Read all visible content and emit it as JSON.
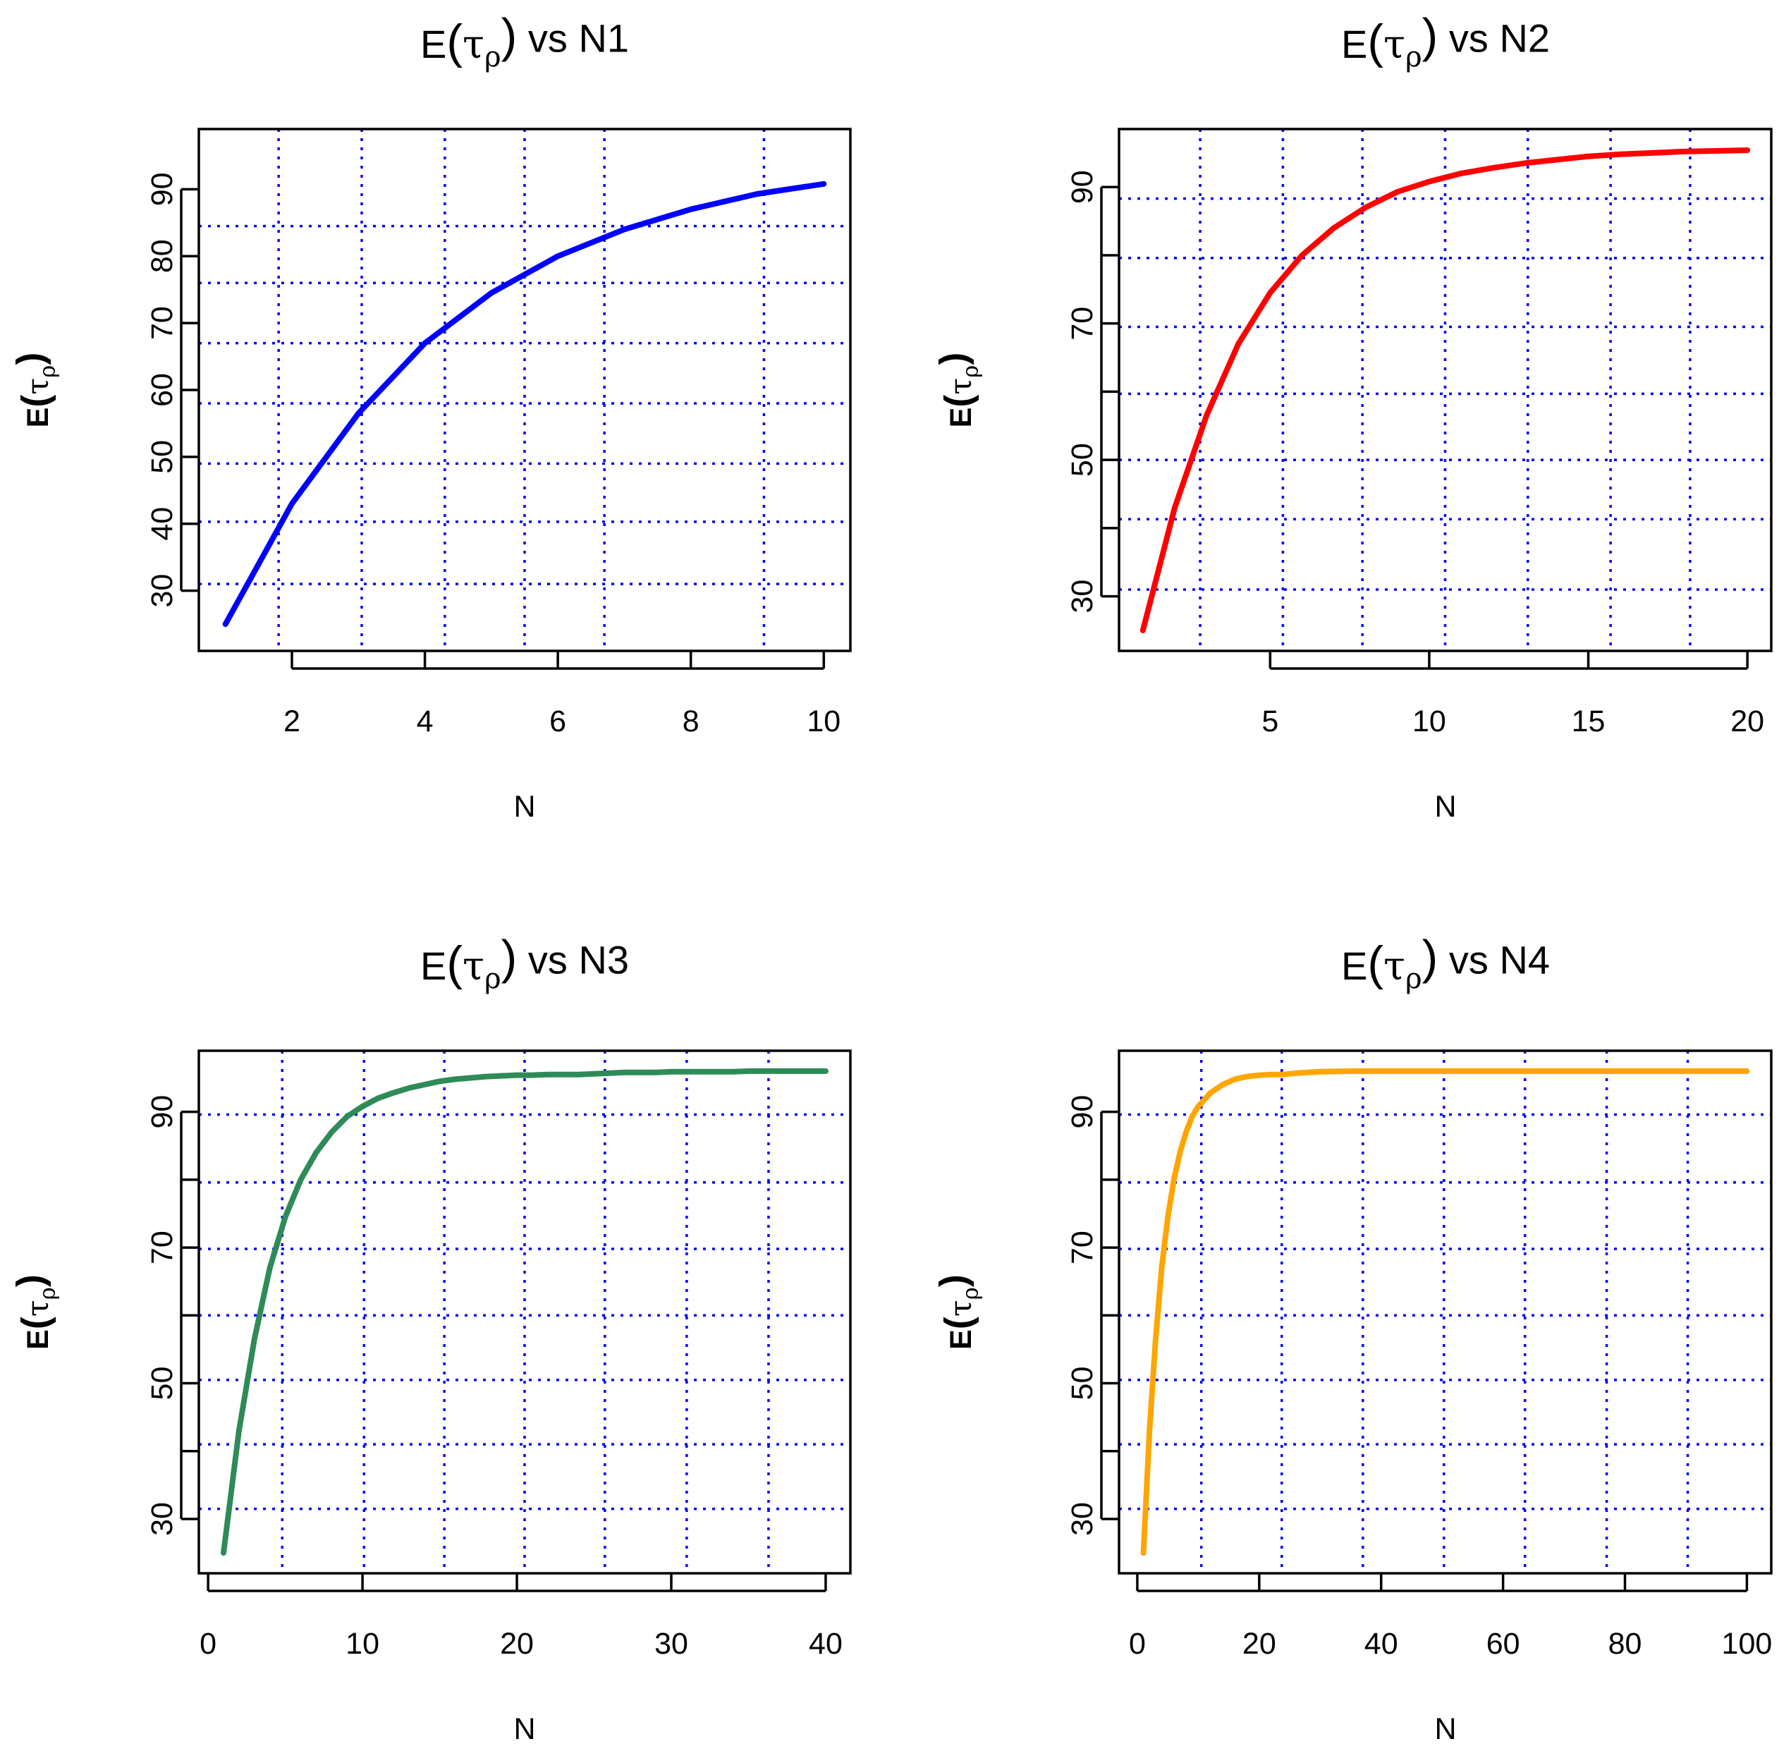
{
  "chart_data": [
    {
      "type": "line",
      "title": "E(τρ) vs N1",
      "title_parts": {
        "prefix": "E",
        "tau": "τ",
        "rho": "ρ",
        "suffix": "vs N1"
      },
      "xlabel": "N",
      "ylabel_parts": {
        "prefix": "E",
        "tau": "τ",
        "rho": "ρ"
      },
      "xlim": [
        0.6,
        10.4
      ],
      "ylim": [
        21,
        99
      ],
      "xticks": [
        2,
        4,
        6,
        8,
        10
      ],
      "yticks": [
        30,
        40,
        50,
        60,
        70,
        80,
        90
      ],
      "grid": true,
      "xgrid": [
        1.8,
        3.05,
        4.3,
        5.5,
        6.7,
        9.1
      ],
      "ygrid": [
        31,
        40.3,
        49,
        58,
        67,
        76,
        84.5
      ],
      "color": "#0000ff",
      "series": [
        {
          "x": [
            1,
            2,
            3,
            4,
            5,
            6,
            7,
            8,
            9,
            10
          ],
          "y": [
            25,
            43,
            56.5,
            67,
            74.5,
            80,
            84,
            87,
            89.3,
            90.8
          ]
        }
      ]
    },
    {
      "type": "line",
      "title": "E(τρ) vs N2",
      "title_parts": {
        "prefix": "E",
        "tau": "τ",
        "rho": "ρ",
        "suffix": "vs N2"
      },
      "xlabel": "N",
      "ylabel_parts": {
        "prefix": "E",
        "tau": "τ",
        "rho": "ρ"
      },
      "xlim": [
        0.25,
        20.75
      ],
      "ylim": [
        22,
        98.5
      ],
      "xticks": [
        5,
        10,
        15,
        20
      ],
      "yticks": [
        30,
        40,
        50,
        60,
        70,
        80,
        90
      ],
      "ytick_labels": [
        "30",
        "",
        "50",
        "",
        "70",
        "",
        "90"
      ],
      "grid": true,
      "xgrid": [
        2.8,
        5.4,
        7.9,
        10.5,
        13.1,
        15.7,
        18.2
      ],
      "ygrid": [
        31,
        41.3,
        50,
        59.7,
        69.5,
        79.6,
        88.3
      ],
      "color": "#ff0000",
      "series": [
        {
          "x": [
            1,
            2,
            3,
            4,
            5,
            6,
            7,
            8,
            9,
            10,
            11,
            12,
            13,
            14,
            15,
            16,
            17,
            18,
            19,
            20
          ],
          "y": [
            25,
            43,
            56.5,
            67,
            74.5,
            80,
            84,
            87,
            89.3,
            90.8,
            92,
            92.8,
            93.5,
            94,
            94.5,
            94.8,
            95,
            95.2,
            95.3,
            95.4
          ]
        }
      ]
    },
    {
      "type": "line",
      "title": "E(τρ) vs N3",
      "title_parts": {
        "prefix": "E",
        "tau": "τ",
        "rho": "ρ",
        "suffix": "vs N3"
      },
      "xlabel": "N",
      "ylabel_parts": {
        "prefix": "E",
        "tau": "τ",
        "rho": "ρ"
      },
      "xlim": [
        -0.6,
        41.6
      ],
      "ylim": [
        22,
        99
      ],
      "xticks": [
        0,
        10,
        20,
        30,
        40
      ],
      "yticks": [
        30,
        40,
        50,
        60,
        70,
        80,
        90
      ],
      "ytick_labels": [
        "30",
        "",
        "50",
        "",
        "70",
        "",
        "90"
      ],
      "grid": true,
      "xgrid": [
        4.8,
        10.1,
        15.3,
        20.5,
        25.7,
        31,
        36.3
      ],
      "ygrid": [
        31.5,
        41,
        50.5,
        60,
        69.8,
        79.6,
        89.6
      ],
      "color": "#2e8b57",
      "series": [
        {
          "x": [
            1,
            2,
            3,
            4,
            5,
            6,
            7,
            8,
            9,
            10,
            11,
            12,
            13,
            14,
            15,
            16,
            17,
            18,
            19,
            20,
            21,
            22,
            23,
            24,
            25,
            26,
            27,
            28,
            29,
            30,
            31,
            32,
            33,
            34,
            35,
            36,
            37,
            38,
            39,
            40
          ],
          "y": [
            25,
            43,
            56.5,
            67,
            74.5,
            80,
            84,
            87,
            89.3,
            90.8,
            92,
            92.8,
            93.5,
            94,
            94.5,
            94.8,
            95,
            95.2,
            95.3,
            95.4,
            95.4,
            95.5,
            95.5,
            95.5,
            95.6,
            95.7,
            95.8,
            95.8,
            95.8,
            95.9,
            95.9,
            95.9,
            95.9,
            95.9,
            96,
            96,
            96,
            96,
            96,
            96
          ]
        }
      ]
    },
    {
      "type": "line",
      "title": "E(τρ) vs N4",
      "title_parts": {
        "prefix": "E",
        "tau": "τ",
        "rho": "ρ",
        "suffix": "vs N4"
      },
      "xlabel": "N",
      "ylabel_parts": {
        "prefix": "E",
        "tau": "τ",
        "rho": "ρ"
      },
      "xlim": [
        -3,
        104
      ],
      "ylim": [
        22,
        99
      ],
      "xticks": [
        0,
        20,
        40,
        60,
        80,
        100
      ],
      "yticks": [
        30,
        40,
        50,
        60,
        70,
        80,
        90
      ],
      "ytick_labels": [
        "30",
        "",
        "50",
        "",
        "70",
        "",
        "90"
      ],
      "grid": true,
      "xgrid": [
        10.5,
        23.7,
        37,
        50.3,
        63.6,
        77,
        90.3
      ],
      "ygrid": [
        31.5,
        41,
        50.5,
        60,
        69.8,
        79.6,
        89.6
      ],
      "color": "#ffa500",
      "series": [
        {
          "x": [
            1,
            2,
            3,
            4,
            5,
            6,
            7,
            8,
            9,
            10,
            12,
            14,
            16,
            18,
            20,
            22,
            24,
            26,
            30,
            35,
            40,
            50,
            60,
            70,
            80,
            90,
            100
          ],
          "y": [
            25,
            43,
            56.5,
            67,
            74.5,
            80,
            84,
            87,
            89.3,
            90.8,
            92.8,
            94,
            94.8,
            95.2,
            95.4,
            95.5,
            95.5,
            95.7,
            95.9,
            96,
            96,
            96,
            96,
            96,
            96,
            96,
            96
          ]
        }
      ]
    }
  ]
}
